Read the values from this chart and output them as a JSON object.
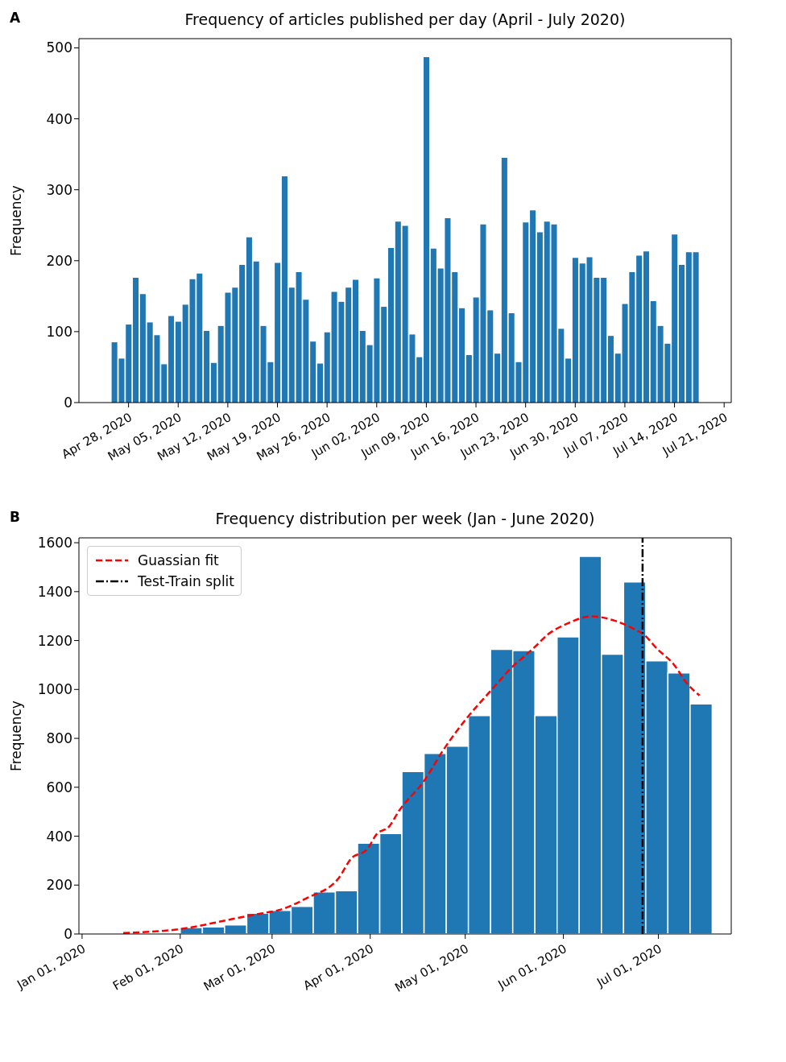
{
  "chart_data": [
    {
      "type": "bar",
      "title": "Frequency of articles published per day (April - July 2020)",
      "ylabel": "Frequency",
      "annotations": [
        "A"
      ],
      "color": "#1f77b4",
      "grid": false,
      "x": [
        "2020-04-26",
        "2020-04-27",
        "2020-04-28",
        "2020-04-29",
        "2020-04-30",
        "2020-05-01",
        "2020-05-02",
        "2020-05-03",
        "2020-05-04",
        "2020-05-05",
        "2020-05-06",
        "2020-05-07",
        "2020-05-08",
        "2020-05-09",
        "2020-05-10",
        "2020-05-11",
        "2020-05-12",
        "2020-05-13",
        "2020-05-14",
        "2020-05-15",
        "2020-05-16",
        "2020-05-17",
        "2020-05-18",
        "2020-05-19",
        "2020-05-20",
        "2020-05-21",
        "2020-05-22",
        "2020-05-23",
        "2020-05-24",
        "2020-05-25",
        "2020-05-26",
        "2020-05-27",
        "2020-05-28",
        "2020-05-29",
        "2020-05-30",
        "2020-05-31",
        "2020-06-01",
        "2020-06-02",
        "2020-06-03",
        "2020-06-04",
        "2020-06-05",
        "2020-06-06",
        "2020-06-07",
        "2020-06-08",
        "2020-06-09",
        "2020-06-10",
        "2020-06-11",
        "2020-06-12",
        "2020-06-13",
        "2020-06-14",
        "2020-06-15",
        "2020-06-16",
        "2020-06-17",
        "2020-06-18",
        "2020-06-19",
        "2020-06-20",
        "2020-06-21",
        "2020-06-22",
        "2020-06-23",
        "2020-06-24",
        "2020-06-25",
        "2020-06-26",
        "2020-06-27",
        "2020-06-28",
        "2020-06-29",
        "2020-06-30",
        "2020-07-01",
        "2020-07-02",
        "2020-07-03",
        "2020-07-04",
        "2020-07-05",
        "2020-07-06",
        "2020-07-07",
        "2020-07-08",
        "2020-07-09",
        "2020-07-10",
        "2020-07-11",
        "2020-07-12",
        "2020-07-13",
        "2020-07-14",
        "2020-07-15",
        "2020-07-16",
        "2020-07-17"
      ],
      "values": [
        85,
        62,
        110,
        176,
        153,
        113,
        95,
        54,
        122,
        114,
        138,
        174,
        182,
        101,
        56,
        108,
        155,
        162,
        194,
        233,
        199,
        108,
        57,
        197,
        319,
        162,
        184,
        145,
        86,
        55,
        99,
        156,
        142,
        162,
        173,
        101,
        81,
        175,
        135,
        218,
        255,
        249,
        96,
        64,
        487,
        217,
        189,
        260,
        184,
        133,
        67,
        148,
        251,
        130,
        69,
        345,
        126,
        57,
        254,
        271,
        240,
        255,
        251,
        104,
        62,
        204,
        196,
        205,
        176,
        176,
        94,
        69,
        139,
        184,
        207,
        213,
        143,
        108,
        83,
        237,
        194,
        212,
        212
      ],
      "xlim": [
        "2020-04-21",
        "2020-07-22"
      ],
      "xticks": [
        {
          "value": "2020-04-28",
          "label": "Apr 28, 2020"
        },
        {
          "value": "2020-05-05",
          "label": "May 05, 2020"
        },
        {
          "value": "2020-05-12",
          "label": "May 12, 2020"
        },
        {
          "value": "2020-05-19",
          "label": "May 19, 2020"
        },
        {
          "value": "2020-05-26",
          "label": "May 26, 2020"
        },
        {
          "value": "2020-06-02",
          "label": "Jun 02, 2020"
        },
        {
          "value": "2020-06-09",
          "label": "Jun 09, 2020"
        },
        {
          "value": "2020-06-16",
          "label": "Jun 16, 2020"
        },
        {
          "value": "2020-06-23",
          "label": "Jun 23, 2020"
        },
        {
          "value": "2020-06-30",
          "label": "Jun 30, 2020"
        },
        {
          "value": "2020-07-07",
          "label": "Jul 07, 2020"
        },
        {
          "value": "2020-07-14",
          "label": "Jul 14, 2020"
        },
        {
          "value": "2020-07-21",
          "label": "Jul 21, 2020"
        }
      ],
      "ylim": [
        0,
        513
      ],
      "yticks": [
        0,
        100,
        200,
        300,
        400,
        500
      ]
    },
    {
      "type": "histogram",
      "title": "Frequency distribution per week (Jan - June 2020)",
      "ylabel": "Frequency",
      "annotations": [
        "B"
      ],
      "color": "#1f77b4",
      "grid": false,
      "legend": "top left",
      "bins": [
        "2020-02-01",
        "2020-02-08",
        "2020-02-15",
        "2020-02-22",
        "2020-02-29",
        "2020-03-07",
        "2020-03-14",
        "2020-03-21",
        "2020-03-28",
        "2020-04-04",
        "2020-04-11",
        "2020-04-18",
        "2020-04-25",
        "2020-05-02",
        "2020-05-09",
        "2020-05-16",
        "2020-05-23",
        "2020-05-30",
        "2020-06-06",
        "2020-06-13",
        "2020-06-20",
        "2020-06-27",
        "2020-07-04",
        "2020-07-11",
        "2020-07-18"
      ],
      "values": [
        26,
        29,
        37,
        85,
        96,
        113,
        172,
        177,
        371,
        411,
        664,
        738,
        768,
        893,
        1164,
        1159,
        893,
        1215,
        1544,
        1144,
        1440,
        1117,
        1068,
        941
      ],
      "series": [
        {
          "type": "line",
          "name": "Guassian fit",
          "color": "#ff0000",
          "line_style": "dashed",
          "x": [
            "2020-01-14",
            "2020-02-02",
            "2020-02-17",
            "2020-02-27",
            "2020-03-03",
            "2020-03-12",
            "2020-03-22",
            "2020-03-26",
            "2020-03-31",
            "2020-04-03",
            "2020-04-07",
            "2020-04-10",
            "2020-04-18",
            "2020-04-24",
            "2020-05-01",
            "2020-05-09",
            "2020-05-15",
            "2020-05-23",
            "2020-05-27",
            "2020-06-02",
            "2020-06-10",
            "2020-06-16",
            "2020-06-23",
            "2020-06-27",
            "2020-06-30",
            "2020-07-06",
            "2020-07-10",
            "2020-07-14"
          ],
          "values": [
            4,
            22,
            60,
            85,
            97,
            147,
            228,
            309,
            346,
            408,
            440,
            502,
            626,
            751,
            875,
            994,
            1081,
            1174,
            1224,
            1268,
            1299,
            1286,
            1249,
            1218,
            1174,
            1100,
            1025,
            975
          ]
        }
      ],
      "ref_lines": [
        {
          "axis": "x",
          "value": "2020-06-26",
          "label": "Test-Train split",
          "color": "#000000",
          "line_style": "dashdot"
        }
      ],
      "xlim": [
        "2019-12-31",
        "2020-07-24"
      ],
      "xticks": [
        {
          "value": "2020-01-01",
          "label": "Jan 01, 2020"
        },
        {
          "value": "2020-02-01",
          "label": "Feb 01, 2020"
        },
        {
          "value": "2020-03-01",
          "label": "Mar 01, 2020"
        },
        {
          "value": "2020-04-01",
          "label": "Apr 01, 2020"
        },
        {
          "value": "2020-05-01",
          "label": "May 01, 2020"
        },
        {
          "value": "2020-06-01",
          "label": "Jun 01, 2020"
        },
        {
          "value": "2020-07-01",
          "label": "Jul 01, 2020"
        }
      ],
      "ylim": [
        0,
        1620
      ],
      "yticks": [
        0,
        200,
        400,
        600,
        800,
        1000,
        1200,
        1400,
        1600
      ]
    }
  ]
}
